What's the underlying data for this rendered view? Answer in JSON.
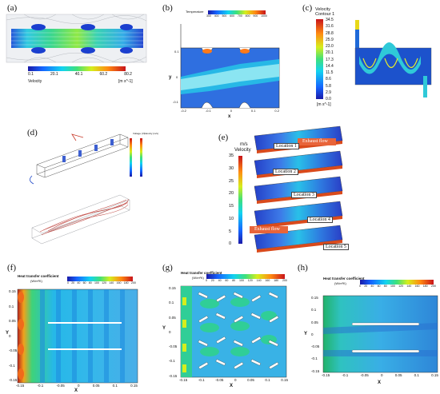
{
  "panels": {
    "a": {
      "label": "(a)",
      "colorbar_ticks": [
        "0.1",
        "20.1",
        "40.1",
        "60.2",
        "80.2"
      ],
      "colorbar_title": "Velocity",
      "colorbar_unit": "[m s^-1]"
    },
    "b": {
      "label": "(b)",
      "legend_title": "Temperature",
      "legend_ticks": [
        "300",
        "400",
        "500",
        "600",
        "700",
        "800",
        "900",
        "1000"
      ],
      "ylabel": "y",
      "xlabel": "x",
      "x_ticks": [
        "-0.2",
        "-0.1",
        "0",
        "0.1",
        "0.2"
      ],
      "y_ticks": [
        "0.1",
        "0",
        "-0.1"
      ]
    },
    "c": {
      "label": "(c)",
      "title_line1": "Velocity",
      "title_line2": "Contour 1",
      "colorbar_ticks": [
        "34.5",
        "31.6",
        "28.8",
        "25.9",
        "23.0",
        "20.1",
        "17.3",
        "14.4",
        "11.5",
        "8.6",
        "5.8",
        "2.9",
        "0.0"
      ],
      "unit": "[m s^-1]"
    },
    "d": {
      "label": "(d)",
      "side_labels": [
        "Voltage (V)",
        "Velocity (m/s)"
      ]
    },
    "e": {
      "label": "(e)",
      "unit": "m/s",
      "title": "Velocity",
      "colorbar_ticks": [
        "35",
        "30",
        "25",
        "20",
        "15",
        "10",
        "5",
        "0"
      ],
      "locations": [
        "Location 1",
        "Location 2",
        "Location 3",
        "Location 4",
        "Location 5"
      ],
      "exhaust": [
        "Exhaust flow",
        "Exhaust flow"
      ]
    },
    "f": {
      "label": "(f)",
      "htc_title": "Heat transfer coefficient",
      "htc_unit": "(W/m²K)",
      "htc_ticks": [
        "0",
        "20",
        "40",
        "60",
        "80",
        "100",
        "120",
        "140",
        "160",
        "180",
        "200"
      ],
      "xlabel": "X",
      "ylabel": "Y",
      "x_ticks": [
        "-0.15",
        "-0.1",
        "-0.05",
        "0",
        "0.05",
        "0.1",
        "0.15"
      ],
      "y_ticks": [
        "0.15",
        "0.1",
        "0.05",
        "0",
        "-0.05",
        "-0.1",
        "-0.15"
      ]
    },
    "g": {
      "label": "(g)",
      "htc_title": "Heat transfer coefficient",
      "htc_unit": "(W/m²K)",
      "htc_ticks": [
        "0",
        "20",
        "40",
        "60",
        "80",
        "100",
        "120",
        "140",
        "160",
        "180",
        "200"
      ],
      "xlabel": "X",
      "ylabel": "Y",
      "x_ticks": [
        "-0.15",
        "-0.1",
        "-0.05",
        "0",
        "0.05",
        "0.1",
        "0.15"
      ],
      "y_ticks": [
        "0.15",
        "0.1",
        "0.05",
        "0",
        "-0.05",
        "-0.1",
        "-0.15"
      ]
    },
    "h": {
      "label": "(h)",
      "htc_title": "Heat transfer coefficient",
      "htc_unit": "(W/m²K)",
      "htc_ticks": [
        "0",
        "20",
        "40",
        "60",
        "80",
        "100",
        "120",
        "140",
        "160",
        "180",
        "200"
      ],
      "xlabel": "X",
      "ylabel": "Y",
      "x_ticks": [
        "-0.15",
        "-0.1",
        "-0.05",
        "0",
        "0.05",
        "0.1",
        "0.15"
      ],
      "y_ticks": [
        "0.15",
        "0.1",
        "0.05",
        "0",
        "-0.05",
        "-0.1",
        "-0.15"
      ]
    }
  }
}
